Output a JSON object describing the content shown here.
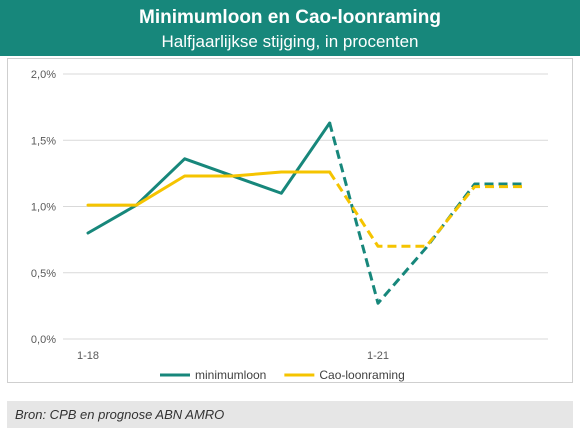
{
  "header": {
    "title": "Minimumloon en Cao-loonraming",
    "subtitle": "Halfjaarlijkse stijging, in procenten"
  },
  "source": "Bron: CPB en prognose ABN AMRO",
  "colors": {
    "header_bg": "#17877b",
    "minimumloon": "#17877b",
    "cao": "#f5c400",
    "grid": "#d9d9d9"
  },
  "chart_data": {
    "type": "line",
    "title": "Minimumloon en Cao-loonraming",
    "subtitle": "Halfjaarlijkse stijging, in procenten",
    "x": [
      "1-18",
      "",
      "",
      "",
      "",
      "",
      "1-21",
      "",
      "",
      ""
    ],
    "x_tick_labels": [
      "1-18",
      "1-21"
    ],
    "ylim": [
      0,
      2.0
    ],
    "y_ticks": [
      "0,0%",
      "0,5%",
      "1,0%",
      "1,5%",
      "2,0%"
    ],
    "y_tick_values": [
      0,
      0.5,
      1.0,
      1.5,
      2.0
    ],
    "grid": true,
    "forecast_start_index": 5,
    "series": [
      {
        "name": "minimumloon",
        "color": "#17877b",
        "values": [
          0.8,
          1.01,
          1.36,
          1.23,
          1.1,
          1.63,
          0.27,
          0.69,
          1.17,
          1.17
        ]
      },
      {
        "name": "Cao-loonraming",
        "color": "#f5c400",
        "values": [
          1.01,
          1.01,
          1.23,
          1.23,
          1.26,
          1.26,
          0.7,
          0.7,
          1.15,
          1.15
        ]
      }
    ],
    "legend": {
      "position": "bottom",
      "entries": [
        "minimumloon",
        "Cao-loonraming"
      ]
    }
  }
}
